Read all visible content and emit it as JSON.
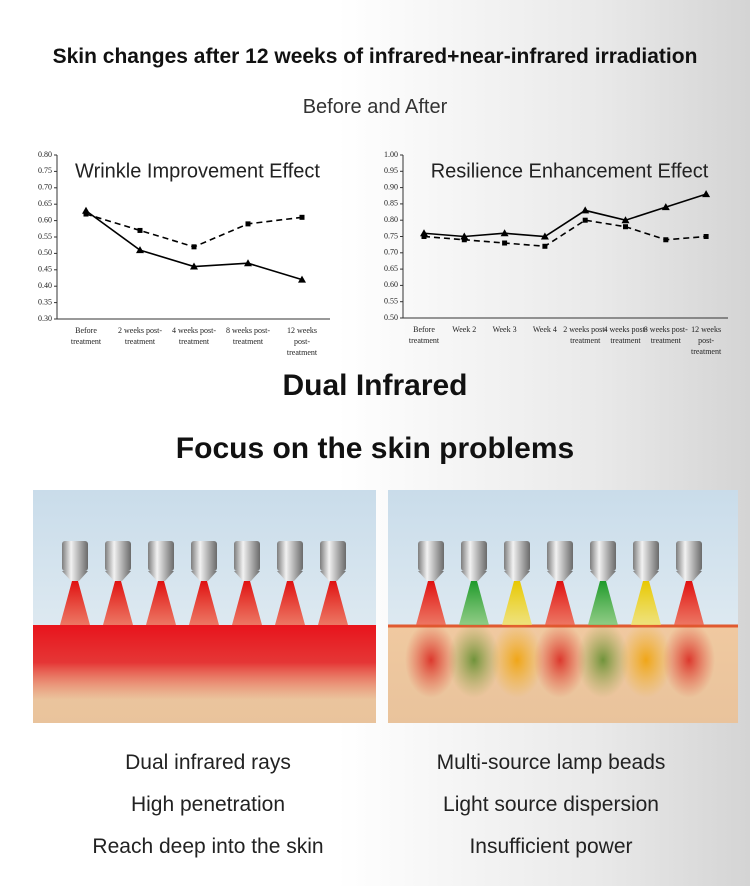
{
  "header": {
    "title": "Skin changes after 12 weeks of infrared+near-infrared irradiation",
    "subtitle": "Before and After"
  },
  "chart_data": [
    {
      "type": "line",
      "title": "Wrinkle Improvement Effect",
      "categories": [
        "Before treatment",
        "2 weeks post-treatment",
        "4 weeks post-treatment",
        "8 weeks post-treatment",
        "12 weeks post-treatment"
      ],
      "series": [
        {
          "color": "#000000",
          "line_style": "solid",
          "marker": "triangle",
          "values": [
            0.63,
            0.51,
            0.46,
            0.47,
            0.42
          ]
        },
        {
          "color": "#000000",
          "line_style": "dashed",
          "marker": "square",
          "values": [
            0.62,
            0.57,
            0.52,
            0.59,
            0.61
          ]
        }
      ],
      "ylim": [
        0.3,
        0.8
      ],
      "yticks": [
        {
          "value": 0.3,
          "label": "0.30"
        },
        {
          "value": 0.35,
          "label": "0.35"
        },
        {
          "value": 0.4,
          "label": "0.40"
        },
        {
          "value": 0.45,
          "label": "0.45"
        },
        {
          "value": 0.5,
          "label": "0.50"
        },
        {
          "value": 0.55,
          "label": "0.55"
        },
        {
          "value": 0.6,
          "label": "0.60"
        },
        {
          "value": 0.65,
          "label": "0.65"
        },
        {
          "value": 0.7,
          "label": "0.70"
        },
        {
          "value": 0.75,
          "label": "0.75"
        },
        {
          "value": 0.8,
          "label": "0.80"
        }
      ]
    },
    {
      "type": "line",
      "title": "Resilience Enhancement Effect",
      "categories": [
        "Before treatment",
        "Week 2",
        "Week 3",
        "Week 4",
        "2 weeks post-treatment",
        "4 weeks post-treatment",
        "8 weeks post-treatment",
        "12 weeks post-treatment"
      ],
      "series": [
        {
          "color": "#000000",
          "line_style": "solid",
          "marker": "triangle",
          "values": [
            0.76,
            0.75,
            0.76,
            0.75,
            0.83,
            0.8,
            0.84,
            0.88
          ]
        },
        {
          "color": "#000000",
          "line_style": "dashed",
          "marker": "square",
          "values": [
            0.75,
            0.74,
            0.73,
            0.72,
            0.8,
            0.78,
            0.74,
            0.75
          ]
        }
      ],
      "ylim": [
        0.5,
        1.0
      ],
      "yticks": [
        {
          "value": 0.5,
          "label": "0.50"
        },
        {
          "value": 0.55,
          "label": "0.55"
        },
        {
          "value": 0.6,
          "label": "0.60"
        },
        {
          "value": 0.65,
          "label": "0.65"
        },
        {
          "value": 0.7,
          "label": "0.70"
        },
        {
          "value": 0.75,
          "label": "0.75"
        },
        {
          "value": 0.8,
          "label": "0.80"
        },
        {
          "value": 0.85,
          "label": "0.85"
        },
        {
          "value": 0.9,
          "label": "0.90"
        },
        {
          "value": 0.95,
          "label": "0.95"
        },
        {
          "value": 1.0,
          "label": "1.00"
        }
      ]
    }
  ],
  "section": {
    "heading": "Dual Infrared",
    "subheading": "Focus on the skin problems"
  },
  "comparison": {
    "left": [
      "Dual infrared rays",
      "High penetration",
      "Reach deep into the skin"
    ],
    "right": [
      "Multi-source lamp beads",
      "Light source dispersion",
      "Insufficient power"
    ]
  }
}
